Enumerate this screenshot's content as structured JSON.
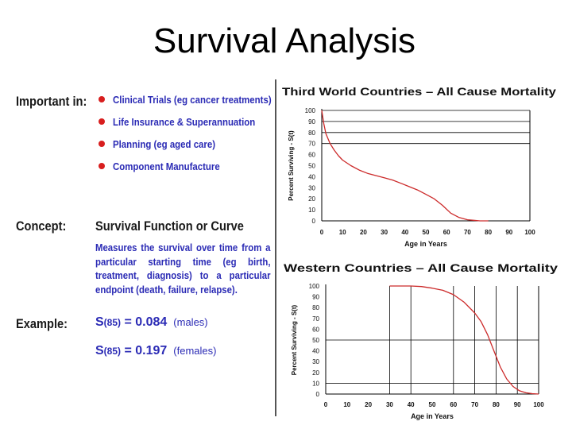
{
  "slide": {
    "title": "Survival Analysis"
  },
  "left": {
    "important_heading": "Important in:",
    "bullets": [
      "Clinical Trials (eg cancer treatments)",
      "Life Insurance & Superannuation",
      "Planning (eg aged care)",
      "Component Manufacture"
    ],
    "concept_heading": "Concept:",
    "concept_title": "Survival Function or Curve",
    "concept_text": "Measures the survival over time from a particular starting time (eg birth, treatment, diagnosis) to a particular endpoint (death, failure, relapse).",
    "example_heading": "Example:",
    "examples": [
      {
        "s": "S",
        "arg": "(85)",
        "eq": "= 0.084",
        "note": "(males)"
      },
      {
        "s": "S",
        "arg": "(85)",
        "eq": "= 0.197",
        "note": "(females)"
      }
    ]
  },
  "colors": {
    "heading": "#1a1a1a",
    "body_text": "#2b2bb5",
    "bullet": "#d81e1e",
    "curve": "#cc2a2a",
    "grid": "#000000"
  },
  "chart_data": [
    {
      "type": "line",
      "title": "Third World Countries – All Cause Mortality",
      "xlabel": "Age in Years",
      "ylabel": "Percent Surviving - S(t)",
      "xlim": [
        0,
        100
      ],
      "ylim": [
        0,
        100
      ],
      "xticks": [
        "0",
        "10",
        "20",
        "30",
        "40",
        "50",
        "60",
        "70",
        "80",
        "90",
        "100"
      ],
      "yticks": [
        "0",
        "10",
        "20",
        "30",
        "40",
        "50",
        "60",
        "70",
        "80",
        "90",
        "100"
      ],
      "grid": "horizontal",
      "series": [
        {
          "x": [
            0,
            1,
            2,
            4,
            6,
            8,
            10,
            14,
            18,
            22,
            26,
            30,
            34,
            38,
            42,
            46,
            50,
            54,
            58,
            62,
            66,
            70,
            73,
            76,
            80
          ],
          "values": [
            100,
            88,
            79,
            70,
            64,
            59,
            55,
            50,
            46,
            43,
            41,
            39,
            37,
            34,
            31,
            28,
            24,
            20,
            14,
            7,
            3,
            1,
            0.5,
            0,
            0
          ]
        }
      ]
    },
    {
      "type": "line",
      "title": "Western Countries – All Cause Mortality",
      "xlabel": "Age in Years",
      "ylabel": "Percent Surviving - S(t)",
      "xlim": [
        0,
        100
      ],
      "ylim": [
        0,
        100
      ],
      "xticks": [
        "0",
        "10",
        "20",
        "30",
        "40",
        "50",
        "60",
        "70",
        "80",
        "90",
        "100"
      ],
      "yticks": [
        "0",
        "10",
        "20",
        "30",
        "40",
        "50",
        "60",
        "70",
        "80",
        "90",
        "100"
      ],
      "grid": "selective",
      "series": [
        {
          "x": [
            30,
            40,
            45,
            50,
            55,
            60,
            65,
            70,
            73,
            76,
            79,
            82,
            85,
            88,
            91,
            94,
            97,
            100
          ],
          "values": [
            100,
            100,
            99.5,
            98,
            96,
            92,
            85,
            75,
            67,
            55,
            40,
            25,
            14,
            7,
            3,
            1.2,
            0.4,
            0
          ]
        }
      ]
    }
  ]
}
